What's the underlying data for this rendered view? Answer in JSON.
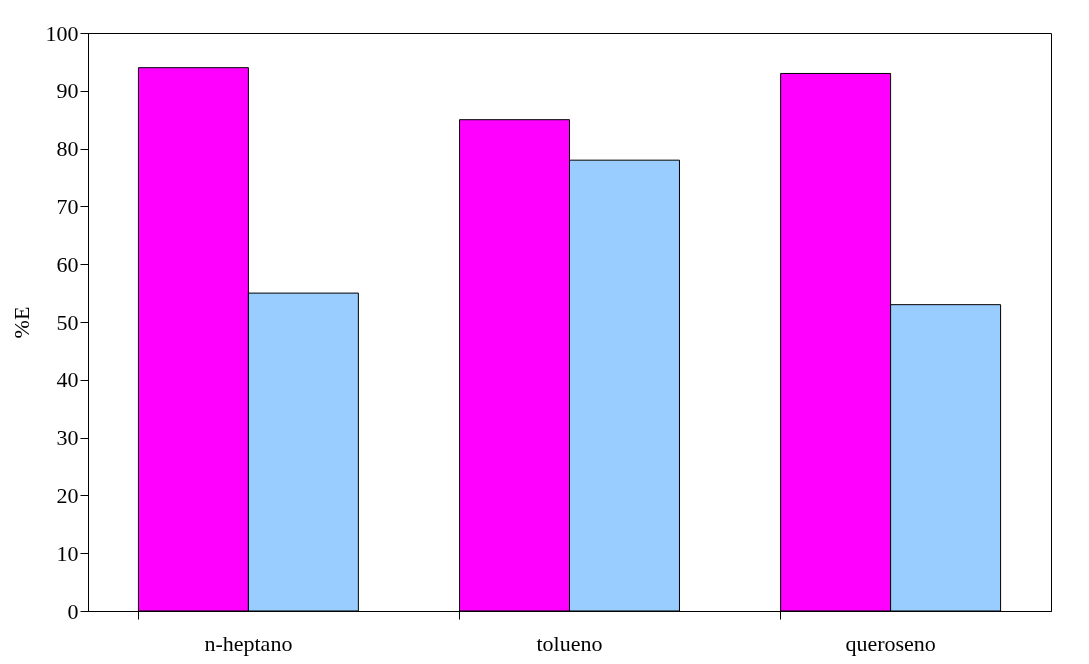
{
  "chart_data": {
    "type": "bar",
    "categories": [
      "n-heptano",
      "tolueno",
      "queroseno"
    ],
    "ylabel": "%E",
    "ylim": [
      0,
      100
    ],
    "yticks": [
      0,
      10,
      20,
      30,
      40,
      50,
      60,
      70,
      80,
      90,
      100
    ],
    "grid": false,
    "legend": false,
    "series": [
      {
        "color": "#ff00ff",
        "values": [
          94,
          85,
          93
        ]
      },
      {
        "color": "#99ccff",
        "values": [
          55,
          78,
          53
        ]
      }
    ]
  }
}
